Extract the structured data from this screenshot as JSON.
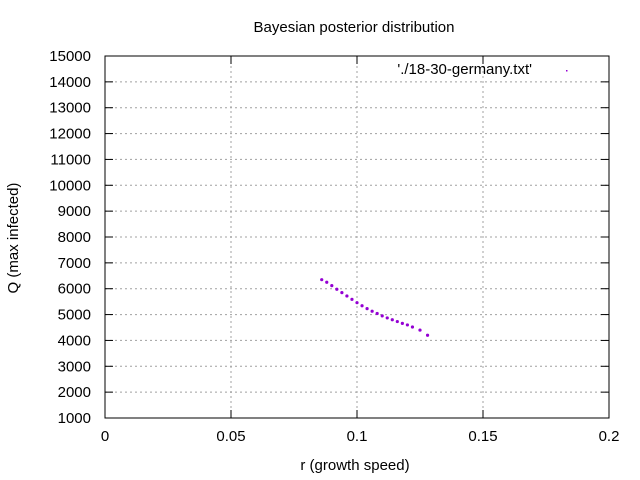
{
  "chart_data": {
    "type": "scatter",
    "title": "Bayesian posterior distribution",
    "xlabel": "r (growth speed)",
    "ylabel": "Q (max infected)",
    "xlim": [
      0,
      0.2
    ],
    "ylim": [
      1000,
      15000
    ],
    "x_ticks": [
      "0",
      "0.05",
      "0.1",
      "0.15",
      "0.2"
    ],
    "y_ticks": [
      "1000",
      "2000",
      "3000",
      "4000",
      "5000",
      "6000",
      "7000",
      "8000",
      "9000",
      "10000",
      "11000",
      "12000",
      "13000",
      "14000",
      "15000"
    ],
    "grid": true,
    "legend_position": "top-right",
    "series": [
      {
        "name": "'./18-30-germany.txt'",
        "color": "#9400d3",
        "x": [
          0.086,
          0.088,
          0.09,
          0.092,
          0.094,
          0.096,
          0.098,
          0.1,
          0.102,
          0.104,
          0.106,
          0.108,
          0.11,
          0.112,
          0.114,
          0.116,
          0.118,
          0.12,
          0.122,
          0.125,
          0.128
        ],
        "y": [
          6350,
          6250,
          6120,
          5980,
          5850,
          5720,
          5590,
          5460,
          5340,
          5230,
          5130,
          5040,
          4950,
          4870,
          4800,
          4730,
          4660,
          4600,
          4520,
          4400,
          4200
        ]
      }
    ]
  }
}
